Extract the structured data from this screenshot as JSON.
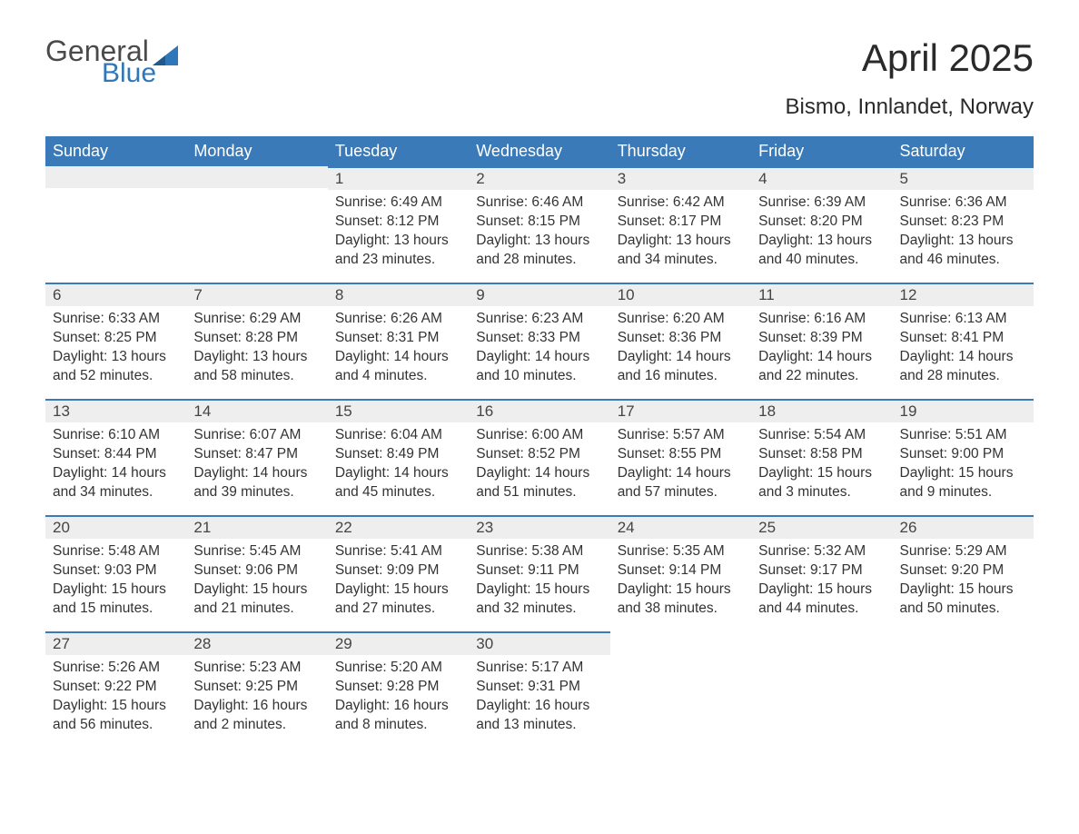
{
  "brand": {
    "word1": "General",
    "word2": "Blue",
    "triangle_color": "#2f77b8",
    "text1_color": "#4a4a4a",
    "text2_color": "#2f77b8"
  },
  "title": "April 2025",
  "location": "Bismo, Innlandet, Norway",
  "colors": {
    "header_bg": "#3a7ab8",
    "header_text": "#ffffff",
    "daynum_bg": "#eeeeee",
    "daynum_border": "#3a7ab8",
    "body_text": "#333333",
    "page_bg": "#ffffff"
  },
  "fonts": {
    "title_size_pt": 32,
    "location_size_pt": 18,
    "header_size_pt": 14,
    "body_size_pt": 12
  },
  "weekdays": [
    "Sunday",
    "Monday",
    "Tuesday",
    "Wednesday",
    "Thursday",
    "Friday",
    "Saturday"
  ],
  "calendar": {
    "type": "table",
    "columns": 7,
    "rows": 5,
    "first_weekday_index": 2,
    "days": [
      {
        "n": 1,
        "sunrise": "6:49 AM",
        "sunset": "8:12 PM",
        "daylight": "13 hours and 23 minutes."
      },
      {
        "n": 2,
        "sunrise": "6:46 AM",
        "sunset": "8:15 PM",
        "daylight": "13 hours and 28 minutes."
      },
      {
        "n": 3,
        "sunrise": "6:42 AM",
        "sunset": "8:17 PM",
        "daylight": "13 hours and 34 minutes."
      },
      {
        "n": 4,
        "sunrise": "6:39 AM",
        "sunset": "8:20 PM",
        "daylight": "13 hours and 40 minutes."
      },
      {
        "n": 5,
        "sunrise": "6:36 AM",
        "sunset": "8:23 PM",
        "daylight": "13 hours and 46 minutes."
      },
      {
        "n": 6,
        "sunrise": "6:33 AM",
        "sunset": "8:25 PM",
        "daylight": "13 hours and 52 minutes."
      },
      {
        "n": 7,
        "sunrise": "6:29 AM",
        "sunset": "8:28 PM",
        "daylight": "13 hours and 58 minutes."
      },
      {
        "n": 8,
        "sunrise": "6:26 AM",
        "sunset": "8:31 PM",
        "daylight": "14 hours and 4 minutes."
      },
      {
        "n": 9,
        "sunrise": "6:23 AM",
        "sunset": "8:33 PM",
        "daylight": "14 hours and 10 minutes."
      },
      {
        "n": 10,
        "sunrise": "6:20 AM",
        "sunset": "8:36 PM",
        "daylight": "14 hours and 16 minutes."
      },
      {
        "n": 11,
        "sunrise": "6:16 AM",
        "sunset": "8:39 PM",
        "daylight": "14 hours and 22 minutes."
      },
      {
        "n": 12,
        "sunrise": "6:13 AM",
        "sunset": "8:41 PM",
        "daylight": "14 hours and 28 minutes."
      },
      {
        "n": 13,
        "sunrise": "6:10 AM",
        "sunset": "8:44 PM",
        "daylight": "14 hours and 34 minutes."
      },
      {
        "n": 14,
        "sunrise": "6:07 AM",
        "sunset": "8:47 PM",
        "daylight": "14 hours and 39 minutes."
      },
      {
        "n": 15,
        "sunrise": "6:04 AM",
        "sunset": "8:49 PM",
        "daylight": "14 hours and 45 minutes."
      },
      {
        "n": 16,
        "sunrise": "6:00 AM",
        "sunset": "8:52 PM",
        "daylight": "14 hours and 51 minutes."
      },
      {
        "n": 17,
        "sunrise": "5:57 AM",
        "sunset": "8:55 PM",
        "daylight": "14 hours and 57 minutes."
      },
      {
        "n": 18,
        "sunrise": "5:54 AM",
        "sunset": "8:58 PM",
        "daylight": "15 hours and 3 minutes."
      },
      {
        "n": 19,
        "sunrise": "5:51 AM",
        "sunset": "9:00 PM",
        "daylight": "15 hours and 9 minutes."
      },
      {
        "n": 20,
        "sunrise": "5:48 AM",
        "sunset": "9:03 PM",
        "daylight": "15 hours and 15 minutes."
      },
      {
        "n": 21,
        "sunrise": "5:45 AM",
        "sunset": "9:06 PM",
        "daylight": "15 hours and 21 minutes."
      },
      {
        "n": 22,
        "sunrise": "5:41 AM",
        "sunset": "9:09 PM",
        "daylight": "15 hours and 27 minutes."
      },
      {
        "n": 23,
        "sunrise": "5:38 AM",
        "sunset": "9:11 PM",
        "daylight": "15 hours and 32 minutes."
      },
      {
        "n": 24,
        "sunrise": "5:35 AM",
        "sunset": "9:14 PM",
        "daylight": "15 hours and 38 minutes."
      },
      {
        "n": 25,
        "sunrise": "5:32 AM",
        "sunset": "9:17 PM",
        "daylight": "15 hours and 44 minutes."
      },
      {
        "n": 26,
        "sunrise": "5:29 AM",
        "sunset": "9:20 PM",
        "daylight": "15 hours and 50 minutes."
      },
      {
        "n": 27,
        "sunrise": "5:26 AM",
        "sunset": "9:22 PM",
        "daylight": "15 hours and 56 minutes."
      },
      {
        "n": 28,
        "sunrise": "5:23 AM",
        "sunset": "9:25 PM",
        "daylight": "16 hours and 2 minutes."
      },
      {
        "n": 29,
        "sunrise": "5:20 AM",
        "sunset": "9:28 PM",
        "daylight": "16 hours and 8 minutes."
      },
      {
        "n": 30,
        "sunrise": "5:17 AM",
        "sunset": "9:31 PM",
        "daylight": "16 hours and 13 minutes."
      }
    ]
  },
  "labels": {
    "sunrise": "Sunrise:",
    "sunset": "Sunset:",
    "daylight": "Daylight:"
  }
}
